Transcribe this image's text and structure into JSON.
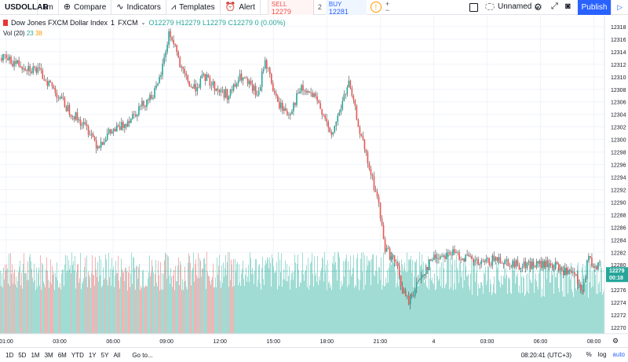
{
  "toolbar": {
    "symbol": "USDOLLAR",
    "interval": "1m",
    "compare": "Compare",
    "indicators": "Indicators",
    "templates": "Templates",
    "alert": "Alert",
    "sell_label": "SELL",
    "sell_value": "12279",
    "spread": "2",
    "buy_label": "BUY",
    "buy_value": "12281",
    "layout_name": "Unnamed",
    "publish": "Publish"
  },
  "legend": {
    "name": "Dow Jones FXCM Dollar Index",
    "interval": "1",
    "source": "FXCM",
    "ohlc": "O12279 H12279 L12279 C12279 0 (0.00%)",
    "vol_label": "Vol (20)",
    "vol_value": "23",
    "vol_ma": "38"
  },
  "chart_data": {
    "type": "candlestick",
    "x_ticks": [
      "01:00",
      "03:00",
      "06:00",
      "09:00",
      "12:00",
      "15:00",
      "18:00",
      "21:00",
      "4",
      "03:00",
      "06:00",
      "08:00"
    ],
    "y_ticks": [
      12318,
      12316,
      12314,
      12312,
      12310,
      12308,
      12306,
      12304,
      12302,
      12300,
      12298,
      12296,
      12294,
      12292,
      12290,
      12288,
      12286,
      12284,
      12282,
      12280,
      12278,
      12276,
      12274,
      12272,
      12270
    ],
    "ylim": [
      12269,
      12319
    ],
    "price_path": [
      [
        0,
        12313
      ],
      [
        3,
        12312
      ],
      [
        6,
        12311
      ],
      [
        8,
        12309
      ],
      [
        11,
        12305
      ],
      [
        13,
        12303
      ],
      [
        15,
        12301
      ],
      [
        16,
        12299
      ],
      [
        18,
        12301
      ],
      [
        20,
        12302
      ],
      [
        22,
        12304
      ],
      [
        24,
        12306
      ],
      [
        26,
        12308
      ],
      [
        27,
        12312
      ],
      [
        28,
        12317
      ],
      [
        29,
        12315
      ],
      [
        30,
        12311
      ],
      [
        32,
        12308
      ],
      [
        34,
        12310
      ],
      [
        36,
        12308
      ],
      [
        38,
        12307
      ],
      [
        40,
        12310
      ],
      [
        42,
        12308
      ],
      [
        43,
        12307
      ],
      [
        44,
        12313
      ],
      [
        46,
        12306
      ],
      [
        48,
        12304
      ],
      [
        50,
        12308
      ],
      [
        52,
        12307
      ],
      [
        54,
        12304
      ],
      [
        55,
        12300
      ],
      [
        57,
        12306
      ],
      [
        58,
        12309
      ],
      [
        59,
        12305
      ],
      [
        61,
        12297
      ],
      [
        63,
        12290
      ],
      [
        64,
        12283
      ],
      [
        66,
        12280
      ],
      [
        67,
        12276
      ],
      [
        68,
        12274
      ],
      [
        70,
        12278
      ],
      [
        72,
        12281
      ],
      [
        75,
        12282
      ],
      [
        78,
        12281
      ],
      [
        80,
        12280
      ],
      [
        83,
        12281
      ],
      [
        86,
        12280
      ],
      [
        89,
        12280
      ],
      [
        92,
        12280
      ],
      [
        96,
        12278
      ],
      [
        97,
        12275
      ],
      [
        98,
        12281
      ],
      [
        99,
        12280
      ]
    ],
    "last_price": "12279",
    "countdown": "00:18",
    "last_price_color": "#26a69a"
  },
  "bottom": {
    "ranges": [
      "1D",
      "5D",
      "1M",
      "3M",
      "6M",
      "YTD",
      "1Y",
      "5Y",
      "All"
    ],
    "goto": "Go to...",
    "clock": "08:20:41 (UTC+3)",
    "percent": "%",
    "log": "log",
    "auto": "auto"
  }
}
